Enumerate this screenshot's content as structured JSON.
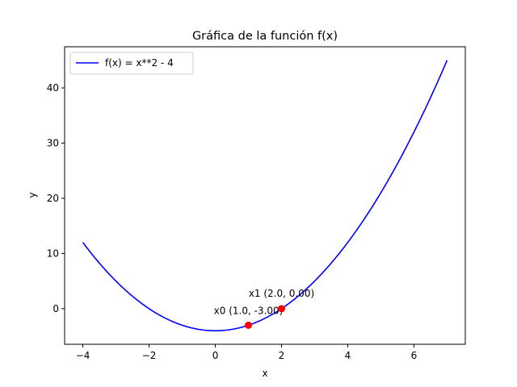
{
  "chart_data": {
    "type": "line",
    "title": "Gráfica de la función f(x)",
    "xlabel": "x",
    "ylabel": "y",
    "xlim": [
      -4.55,
      7.55
    ],
    "ylim": [
      -6.45,
      47.45
    ],
    "xticks": [
      -4,
      -2,
      0,
      2,
      4,
      6
    ],
    "xtick_labels": [
      "−4",
      "−2",
      "0",
      "2",
      "4",
      "6"
    ],
    "yticks": [
      0,
      10,
      20,
      30,
      40
    ],
    "ytick_labels": [
      "0",
      "10",
      "20",
      "30",
      "40"
    ],
    "grid": false,
    "legend_position": "upper-left",
    "series": [
      {
        "name": "f(x) = x**2 - 4",
        "color": "#0000ff",
        "function": "x**2 - 4",
        "x_range": [
          -4,
          7
        ]
      }
    ],
    "points": [
      {
        "x": 1.0,
        "y": -3.0,
        "label": "x0 (1.0, -3.00)",
        "color": "#ff0000"
      },
      {
        "x": 2.0,
        "y": 0.0,
        "label": "x1 (2.0, 0.00)",
        "color": "#ff0000"
      }
    ]
  }
}
